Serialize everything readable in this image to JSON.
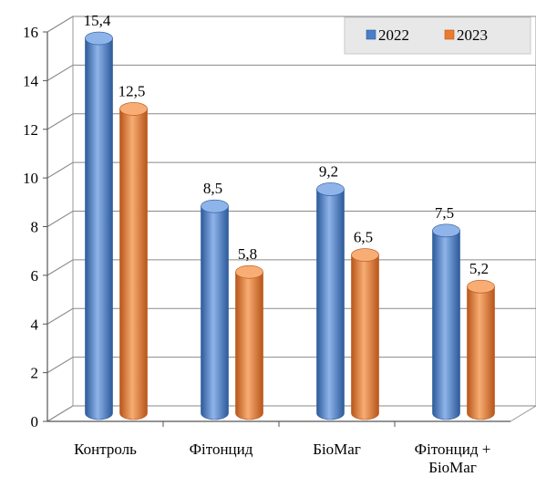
{
  "chart_data": {
    "type": "bar",
    "title": "",
    "xlabel": "",
    "ylabel": "",
    "categories": [
      "Контроль",
      "Фітонцид",
      "БіоМаг",
      "Фітонцид + БіоМаг"
    ],
    "category_lines": [
      [
        "Контроль"
      ],
      [
        "Фітонцид"
      ],
      [
        "БіоМаг"
      ],
      [
        "Фітонцид +",
        "БіоМаг"
      ]
    ],
    "series": [
      {
        "name": "2022",
        "values": [
          15.4,
          8.5,
          9.2,
          7.5
        ],
        "labels": [
          "15,4",
          "8,5",
          "9,2",
          "7,5"
        ],
        "color": "#4a7ec9",
        "color_light": "#8fb4ea",
        "color_dark": "#2d5a9a"
      },
      {
        "name": "2023",
        "values": [
          12.5,
          5.8,
          6.5,
          5.2
        ],
        "labels": [
          "12,5",
          "5,8",
          "6,5",
          "5,2"
        ],
        "color": "#ec7a2e",
        "color_light": "#f7ad73",
        "color_dark": "#b8551a"
      }
    ],
    "ylim": [
      0,
      16
    ],
    "yticks": [
      0,
      2,
      4,
      6,
      8,
      10,
      12,
      14,
      16
    ],
    "grid": true,
    "legend": "top-right",
    "style": "3d-cylinder"
  }
}
